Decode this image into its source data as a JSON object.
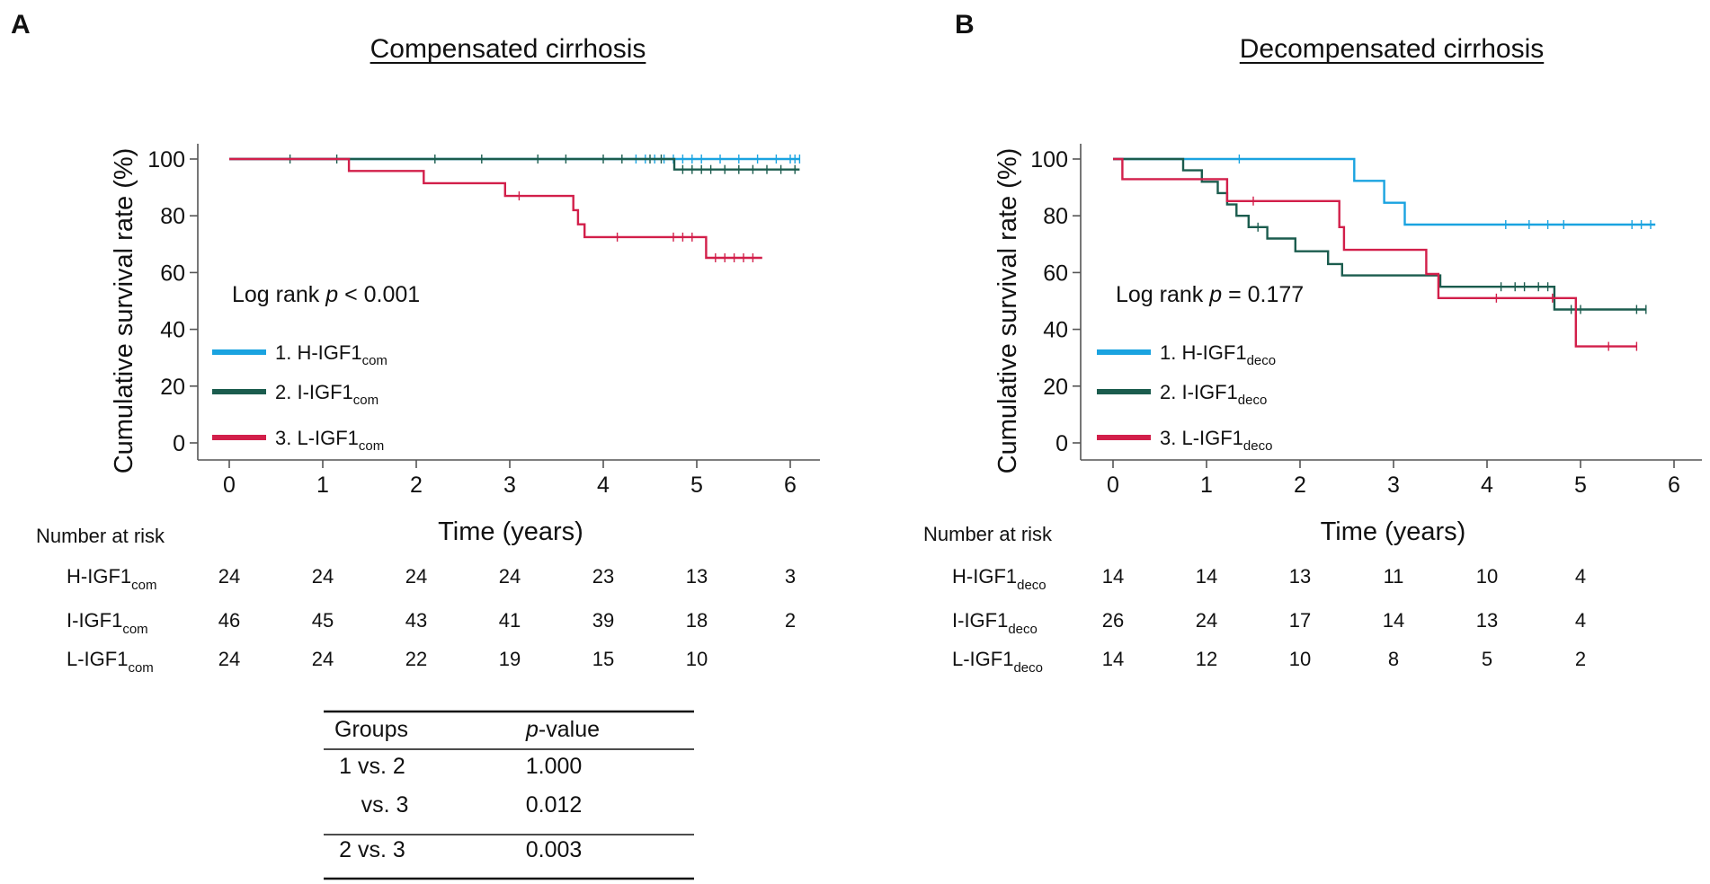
{
  "chart_data": [
    {
      "panel": "A",
      "type": "line",
      "title": "Compensated cirrhosis",
      "xlabel": "Time (years)",
      "ylabel": "Cumulative survival rate (%)",
      "xlim": [
        -0.3,
        6.3
      ],
      "ylim": [
        -5,
        105
      ],
      "xticks": [
        0,
        1,
        2,
        3,
        4,
        5,
        6
      ],
      "yticks": [
        0,
        20,
        40,
        60,
        80,
        100
      ],
      "annotation": {
        "prefix": "Log rank ",
        "p": "p",
        "suffix": " < 0.001"
      },
      "series": [
        {
          "name": "1. H-IGF1",
          "sub": "com",
          "color": "#1aa3e0",
          "x": [
            0,
            6.1
          ],
          "y": [
            100,
            100
          ],
          "censor_x": [
            4.35,
            4.45,
            4.55,
            4.65,
            4.75,
            4.85,
            4.95,
            5.05,
            5.25,
            5.45,
            5.65,
            5.85,
            6.0,
            6.05,
            6.1
          ]
        },
        {
          "name": "2. I-IGF1",
          "sub": "com",
          "color": "#1b5c4e",
          "x": [
            0,
            4.76,
            4.76,
            6.1
          ],
          "y": [
            100,
            100,
            96.3,
            96.3
          ],
          "censor_x": [
            0.65,
            1.15,
            2.2,
            2.7,
            3.3,
            3.6,
            4.0,
            4.2,
            4.5,
            4.62,
            4.85,
            4.95,
            5.05,
            5.15,
            5.3,
            5.45,
            5.6,
            5.75,
            5.9,
            6.05
          ]
        },
        {
          "name": "3. L-IGF1",
          "sub": "com",
          "color": "#d21f4a",
          "x": [
            0,
            1.28,
            1.28,
            2.08,
            2.08,
            2.95,
            2.95,
            3.68,
            3.68,
            3.73,
            3.73,
            3.8,
            3.8,
            5.1,
            5.1,
            5.7
          ],
          "y": [
            100,
            100,
            95.8,
            95.8,
            91.5,
            91.5,
            87,
            87,
            82,
            82,
            77,
            77,
            72.5,
            72.5,
            65.2,
            65.2
          ],
          "censor_x": [
            3.1,
            4.15,
            4.75,
            4.85,
            4.95,
            5.2,
            5.3,
            5.4,
            5.5,
            5.6
          ]
        }
      ],
      "risk_table": {
        "label": "Number at risk",
        "rows": [
          {
            "name": "H-IGF1",
            "sub": "com",
            "values": [
              "24",
              "24",
              "24",
              "24",
              "23",
              "13",
              "3"
            ]
          },
          {
            "name": "I-IGF1",
            "sub": "com",
            "values": [
              "46",
              "45",
              "43",
              "41",
              "39",
              "18",
              "2"
            ]
          },
          {
            "name": "L-IGF1",
            "sub": "com",
            "values": [
              "24",
              "24",
              "22",
              "19",
              "15",
              "10"
            ]
          }
        ]
      },
      "pvalue_table": {
        "headers": {
          "groups": "Groups",
          "pv_italic": "p",
          "pv_rest": "-value"
        },
        "rows": [
          {
            "group": "1 vs. 2",
            "value": "1.000"
          },
          {
            "group": "vs. 3",
            "value": "0.012"
          },
          {
            "group": "2 vs. 3",
            "value": "0.003"
          }
        ]
      }
    },
    {
      "panel": "B",
      "type": "line",
      "title": "Decompensated cirrhosis",
      "xlabel": "Time (years)",
      "ylabel": "Cumulative survival rate (%)",
      "xlim": [
        -0.3,
        6.3
      ],
      "ylim": [
        -5,
        105
      ],
      "xticks": [
        0,
        1,
        2,
        3,
        4,
        5,
        6
      ],
      "yticks": [
        0,
        20,
        40,
        60,
        80,
        100
      ],
      "annotation": {
        "prefix": "Log rank ",
        "p": "p",
        "suffix": " = 0.177"
      },
      "series": [
        {
          "name": "1. H-IGF1",
          "sub": "deco",
          "color": "#1aa3e0",
          "x": [
            0,
            2.58,
            2.58,
            2.9,
            2.9,
            3.12,
            3.12,
            5.8
          ],
          "y": [
            100,
            100,
            92.3,
            92.3,
            84.6,
            84.6,
            76.9,
            76.9
          ],
          "censor_x": [
            1.35,
            4.2,
            4.45,
            4.65,
            4.82,
            5.55,
            5.65,
            5.75
          ]
        },
        {
          "name": "2. I-IGF1",
          "sub": "deco",
          "color": "#1b5c4e",
          "x": [
            0,
            0.75,
            0.75,
            0.95,
            0.95,
            1.12,
            1.12,
            1.22,
            1.22,
            1.32,
            1.32,
            1.45,
            1.45,
            1.65,
            1.65,
            1.95,
            1.95,
            2.3,
            2.3,
            2.45,
            2.45,
            2.6,
            2.6,
            3.5,
            3.5,
            4.72,
            4.72,
            5.7
          ],
          "y": [
            100,
            100,
            96,
            96,
            92,
            92,
            88,
            88,
            84,
            84,
            80,
            80,
            76,
            76,
            72,
            72,
            67.5,
            67.5,
            63,
            63,
            59,
            59,
            59,
            59,
            55,
            55,
            47,
            47
          ],
          "censor_x": [
            1.55,
            4.15,
            4.3,
            4.4,
            4.55,
            4.65,
            4.9,
            5.0,
            5.6,
            5.7
          ]
        },
        {
          "name": "3. L-IGF1",
          "sub": "deco",
          "color": "#d21f4a",
          "x": [
            0,
            0.1,
            0.1,
            1.02,
            1.02,
            1.22,
            1.22,
            2.42,
            2.42,
            2.47,
            2.47,
            3.35,
            3.35,
            3.48,
            3.48,
            4.95,
            4.95,
            5.6
          ],
          "y": [
            100,
            100,
            92.9,
            92.9,
            92.9,
            92.9,
            85.2,
            85.2,
            76,
            76,
            68,
            68,
            59.5,
            59.5,
            51,
            51,
            34,
            34
          ],
          "censor_x": [
            1.5,
            4.1,
            4.7,
            5.3,
            5.6
          ]
        }
      ],
      "risk_table": {
        "label": "Number at risk",
        "rows": [
          {
            "name": "H-IGF1",
            "sub": "deco",
            "values": [
              "14",
              "14",
              "13",
              "11",
              "10",
              "4"
            ]
          },
          {
            "name": "I-IGF1",
            "sub": "deco",
            "values": [
              "26",
              "24",
              "17",
              "14",
              "13",
              "4"
            ]
          },
          {
            "name": "L-IGF1",
            "sub": "deco",
            "values": [
              "14",
              "12",
              "10",
              "8",
              "5",
              "2"
            ]
          }
        ]
      }
    }
  ]
}
